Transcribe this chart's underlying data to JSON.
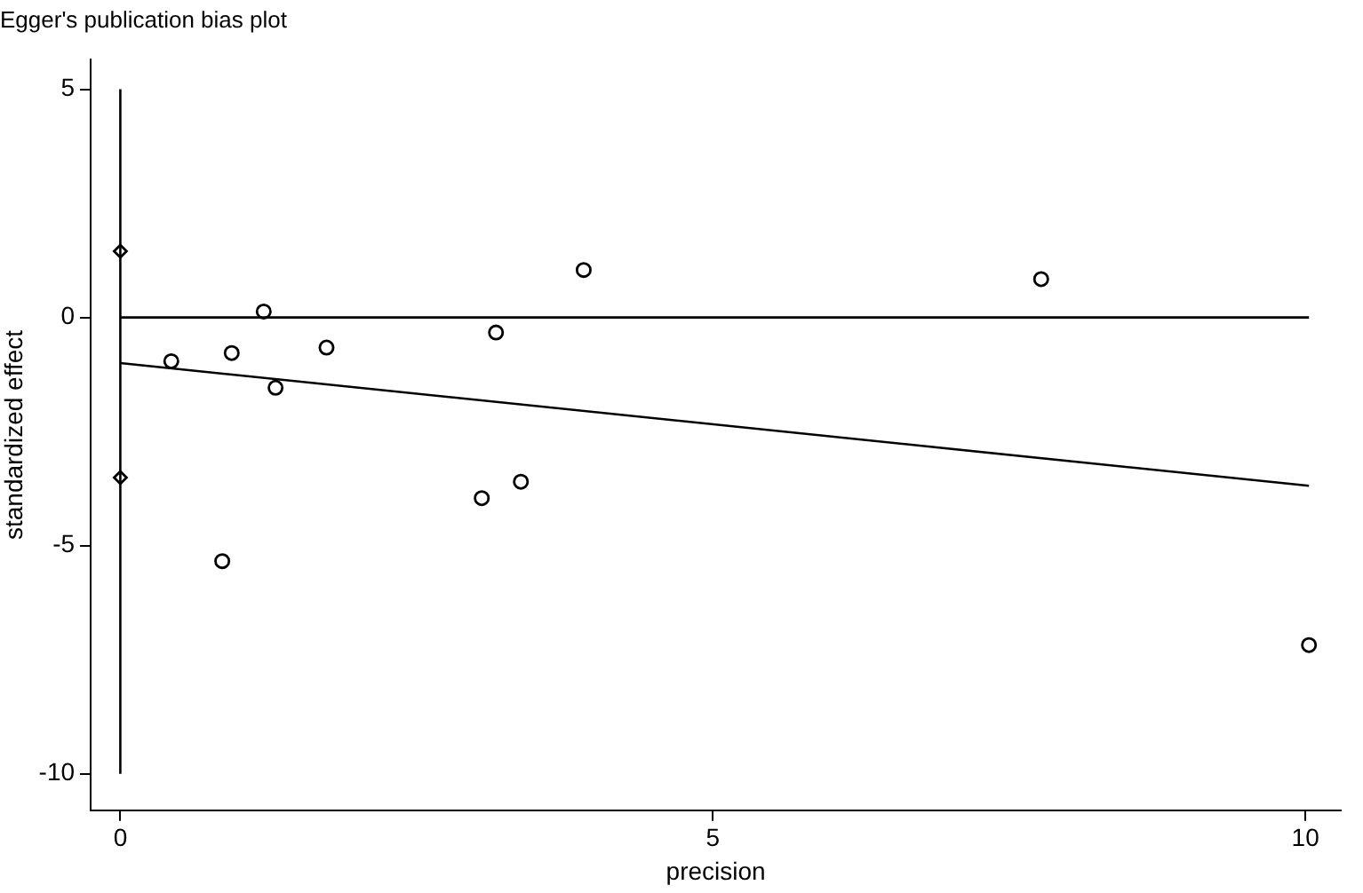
{
  "chart_data": {
    "type": "scatter",
    "title": "Egger's publication bias plot",
    "xlabel": "precision",
    "ylabel": "standardized effect",
    "xlim": [
      -0.25,
      10.3
    ],
    "ylim": [
      -10.8,
      5.65
    ],
    "xticks": [
      0,
      5,
      10
    ],
    "yticks": [
      -10,
      -5,
      0,
      5
    ],
    "grid": false,
    "legend": false,
    "marker": "circle",
    "series": [
      {
        "type": "scatter",
        "color": "#000000",
        "x": [
          0.43,
          0.94,
          1.21,
          1.74,
          1.31,
          0.86,
          3.91,
          3.17,
          3.38,
          3.05,
          7.77,
          10.03
        ],
        "values": [
          -0.96,
          -0.78,
          0.13,
          -0.66,
          -1.54,
          -5.34,
          1.04,
          -0.33,
          -3.6,
          -3.96,
          0.84,
          -7.18
        ]
      },
      {
        "type": "scatter",
        "color": "#000000",
        "marker": "diamond",
        "x": [
          0,
          0
        ],
        "values": [
          1.45,
          -3.51
        ]
      },
      {
        "type": "line",
        "color": "#000000",
        "marker": "none",
        "line_style": "solid",
        "x": [
          0,
          10.03
        ],
        "values": [
          -1.0,
          -3.69
        ]
      },
      {
        "type": "line",
        "color": "#000000",
        "marker": "none",
        "line_style": "solid",
        "x": [
          0,
          10.03
        ],
        "values": [
          0,
          0
        ]
      },
      {
        "type": "line",
        "color": "#000000",
        "marker": "none",
        "line_style": "solid",
        "x": [
          0,
          0
        ],
        "values": [
          -10,
          5
        ]
      }
    ]
  }
}
